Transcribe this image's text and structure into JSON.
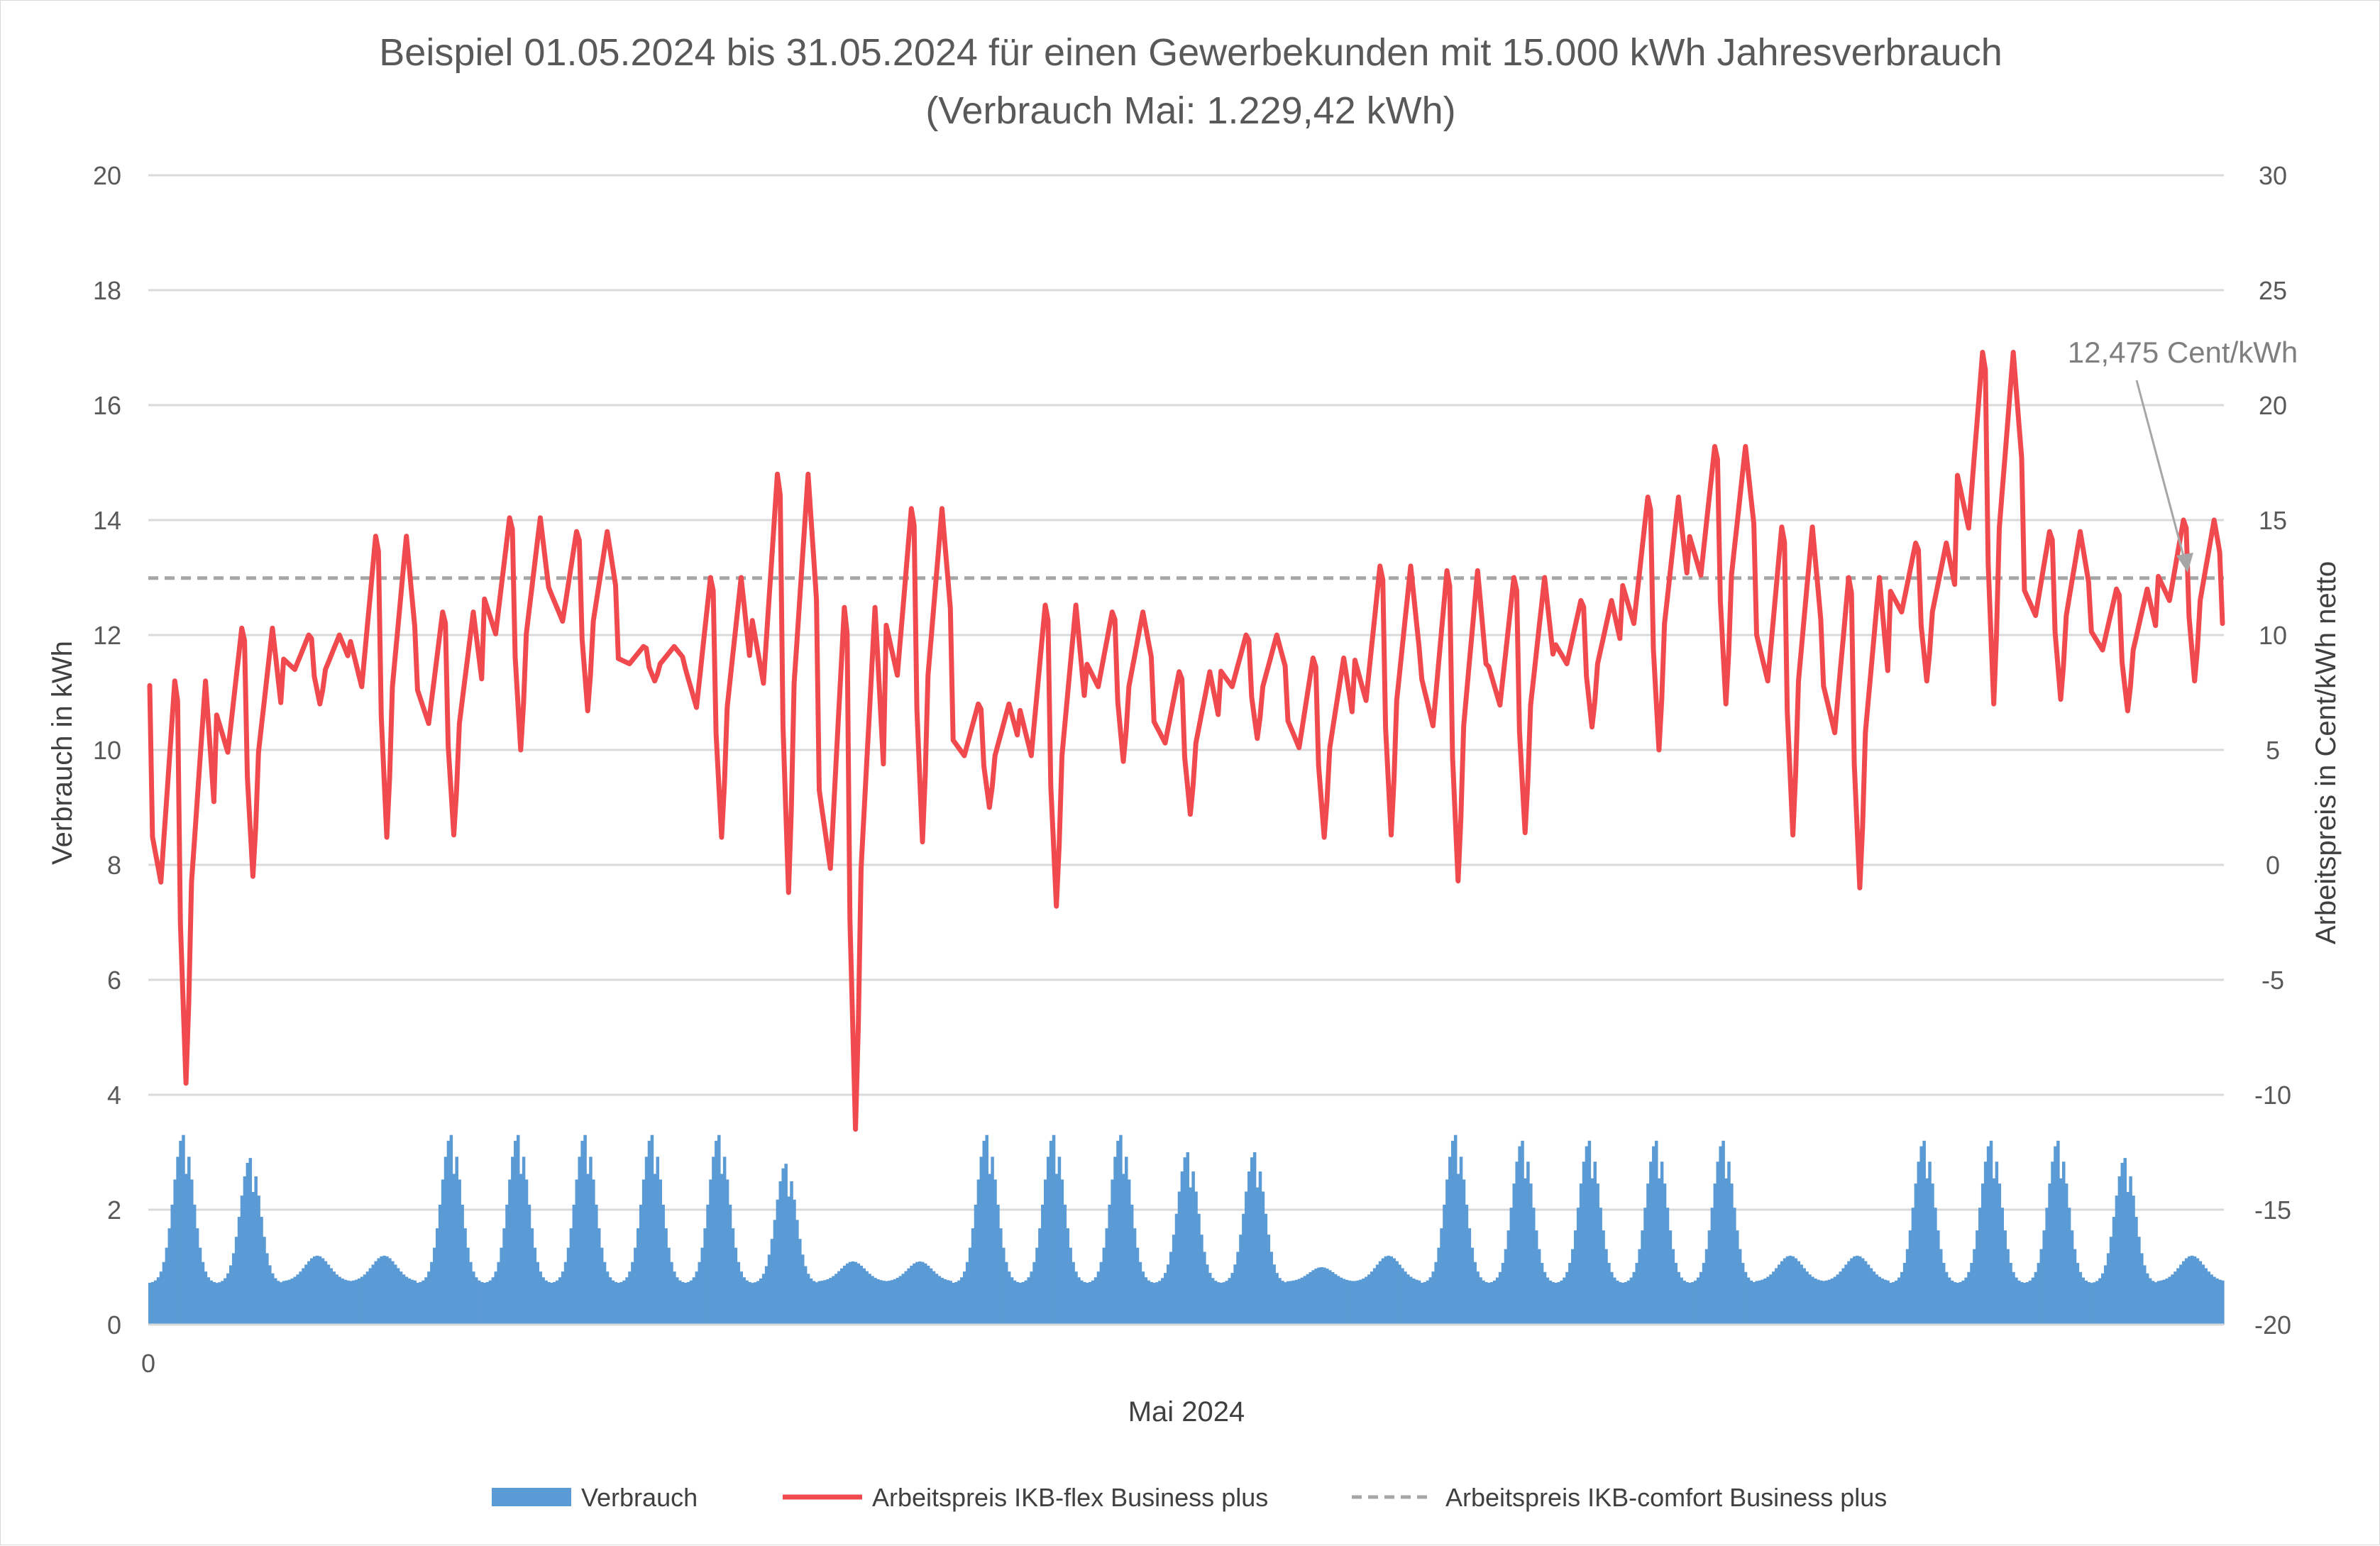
{
  "chart_data": {
    "type": "bar+line",
    "title": "Beispiel 01.05.2024 bis 31.05.2024 für einen Gewerbekunden mit 15.000 kWh Jahresverbrauch",
    "subtitle": "(Verbrauch Mai: 1.229,42 kWh)",
    "xlabel": "Mai 2024",
    "x_tick_labels": [
      "0"
    ],
    "ylabel_left": "Verbrauch in kWh",
    "ylabel_right": "Arbeitspreis in Cent/kWh netto",
    "ylim_left": [
      0,
      20
    ],
    "yticks_left": [
      "0",
      "2",
      "4",
      "6",
      "8",
      "10",
      "12",
      "14",
      "16",
      "18",
      "20"
    ],
    "ylim_right": [
      -20,
      30
    ],
    "yticks_right": [
      "-20",
      "-15",
      "-10",
      "-5",
      "0",
      "5",
      "10",
      "15",
      "20",
      "25",
      "30"
    ],
    "grid": true,
    "legend_position": "bottom",
    "days": 31,
    "series": [
      {
        "name": "Verbrauch",
        "type": "bar",
        "axis": "left",
        "color": "#5b9bd5",
        "daily_peak_kwh": [
          3.3,
          2.9,
          1.2,
          1.2,
          3.3,
          3.3,
          3.3,
          3.3,
          3.3,
          2.8,
          1.1,
          1.1,
          3.3,
          3.3,
          3.3,
          3.0,
          3.0,
          1.0,
          1.2,
          3.3,
          3.2,
          3.2,
          3.2,
          3.2,
          1.2,
          1.2,
          3.2,
          3.2,
          3.2,
          2.9,
          1.2
        ],
        "night_base_kwh": 0.8
      },
      {
        "name": "Arbeitspreis IKB-flex Business plus",
        "type": "line",
        "axis": "right",
        "color": "#f04a4f",
        "daily_min_cent": [
          -9.5,
          -0.5,
          7.0,
          1.2,
          1.3,
          5.0,
          6.7,
          8.0,
          1.2,
          -1.2,
          -11.5,
          1.0,
          2.5,
          -1.8,
          4.5,
          2.2,
          5.5,
          1.2,
          1.3,
          -0.7,
          1.4,
          6.0,
          5.0,
          7.0,
          1.3,
          -1.0,
          8.0,
          7.0,
          7.2,
          6.7,
          8.0
        ],
        "daily_max_cent": [
          8.0,
          10.3,
          10.0,
          14.3,
          11.0,
          15.1,
          14.5,
          9.5,
          12.5,
          17.0,
          11.2,
          15.5,
          7.0,
          11.3,
          11.0,
          8.4,
          10.0,
          9.0,
          13.0,
          12.8,
          12.5,
          11.5,
          16.0,
          18.2,
          14.7,
          12.5,
          14.0,
          22.3,
          14.5,
          12.0,
          15.0
        ],
        "start_cent": 7.8,
        "end_cent": 10.5
      },
      {
        "name": "Arbeitspreis IKB-comfort Business plus",
        "type": "line",
        "axis": "right",
        "style": "dashed",
        "color": "#a6a6a6",
        "value_cent": 12.475
      }
    ],
    "annotations": [
      {
        "text": "12,475 Cent/kWh",
        "points_to": "Arbeitspreis IKB-comfort Business plus"
      }
    ]
  },
  "colors": {
    "gridline": "#d9d9d9",
    "text": "#595959",
    "frame": "#d9d9d9"
  }
}
